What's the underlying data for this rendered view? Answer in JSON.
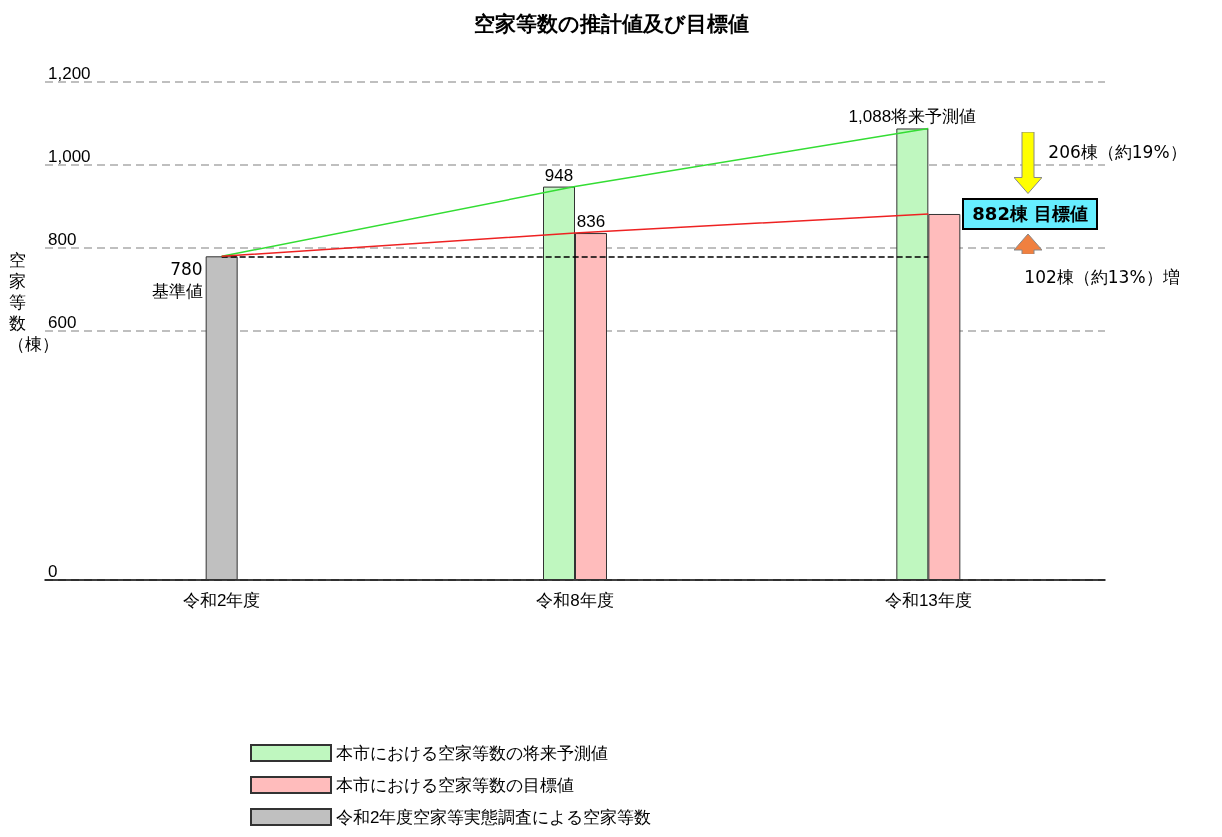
{
  "chart_data": {
    "type": "bar",
    "title": "空家等数の推計値及び目標値",
    "ylabel": "空家等数（棟）",
    "categories": [
      "令和2年度",
      "令和8年度",
      "令和13年度"
    ],
    "series": [
      {
        "name": "本市における空家等数の将来予測値",
        "color": "#bff7bf",
        "values": [
          null,
          948,
          1088
        ],
        "value_labels": [
          null,
          "948",
          "1,088将来予測値"
        ]
      },
      {
        "name": "本市における空家等数の目標値",
        "color": "#ffbcbc",
        "values": [
          null,
          836,
          882
        ],
        "value_labels": [
          null,
          "836",
          null
        ]
      },
      {
        "name": "令和2年度空家等実態調査による空家等数",
        "color": "#c0c0c0",
        "values": [
          780,
          null,
          null
        ]
      },
      {
        "type": "line",
        "color": "#33dd33",
        "values": [
          780,
          948,
          1088
        ]
      },
      {
        "type": "line",
        "color": "#ee2222",
        "values": [
          780,
          836,
          882
        ]
      }
    ],
    "ylim": [
      0,
      1200
    ],
    "yticks": [
      0,
      600,
      800,
      {
        "value": 1000,
        "label": "1,000"
      },
      {
        "value": 1200,
        "label": "1,200"
      }
    ],
    "grid": "y",
    "legend": "bottom",
    "marker": "none",
    "ref_lines": [
      {
        "axis": "y",
        "value": 780,
        "label": null,
        "color": "#000000",
        "line_style": "dashed"
      }
    ],
    "annotations": [
      "206棟（約19%）",
      "102棟（約13%）増",
      {
        "text": "780\n基準値",
        "x": "令和2年度",
        "y": 780
      },
      {
        "text": "882棟 目標値",
        "x": "令和13年度",
        "y": 882
      }
    ]
  }
}
